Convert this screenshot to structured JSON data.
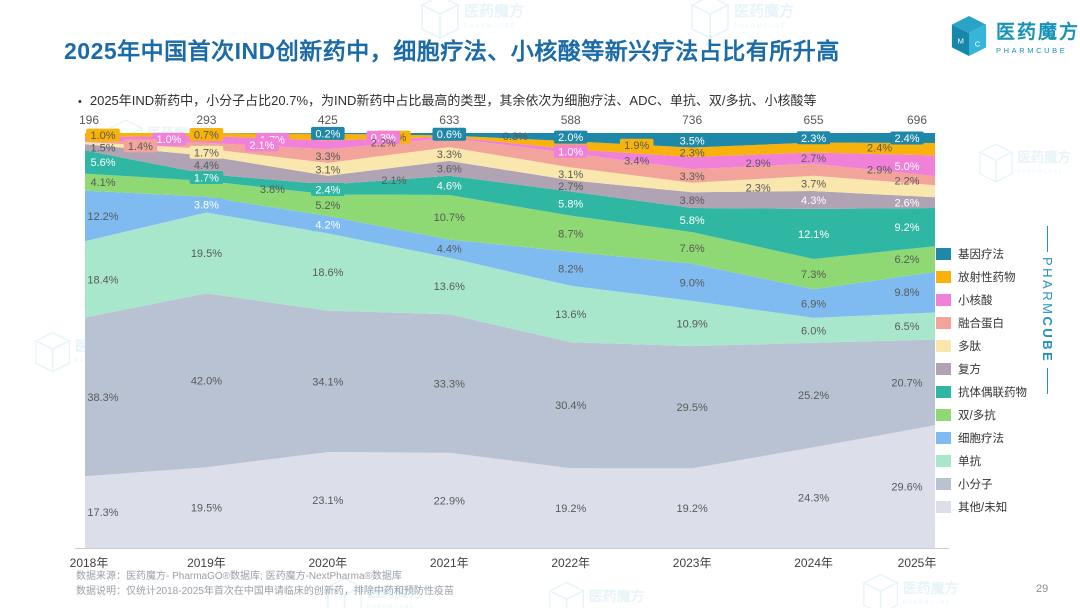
{
  "header": {
    "title": "2025年中国首次IND创新药中，细胞疗法、小核酸等新兴疗法占比有所升高",
    "bullet_marker": "•",
    "bullet": "2025年IND新药中，小分子占比20.7%，为IND新药中占比最高的类型，其余依次为细胞疗法、ADC、单抗、双/多抗、小核酸等"
  },
  "brand": {
    "logo_name_cn": "医药魔方",
    "logo_name_en": "PHARMCUBE",
    "side_brand_normal": "PHARM",
    "side_brand_bold": "CUBE"
  },
  "footer": {
    "source": "数据来源：医药魔方- PharmaGO®数据库; 医药魔方-NextPharma®数据库",
    "note": "数据说明：仅统计2018-2025年首次在中国申请临床的创新药，排除中药和预防性疫苗",
    "page_number": "29"
  },
  "colors": {
    "title_blue": "#1a6ba8",
    "brand_teal": "#1693b9",
    "label_dark": "#595959",
    "label_white": "#ffffff",
    "axis_line": "#c9ced6"
  },
  "chart_data": {
    "type": "area",
    "stacked": true,
    "percent_total": true,
    "grid": false,
    "legend_position": "right",
    "x": [
      "2018年",
      "2019年",
      "2020年",
      "2021年",
      "2022年",
      "2023年",
      "2024年",
      "2025年"
    ],
    "totals": [
      "196",
      "293",
      "425",
      "633",
      "588",
      "736",
      "655",
      "696"
    ],
    "ylim": [
      0,
      100
    ],
    "series": [
      {
        "id": "gene-therapy",
        "name": "基因疗法",
        "color": "#1f87a8",
        "values": [
          0,
          0,
          0.2,
          0.6,
          2.0,
          3.5,
          2.3,
          2.4
        ],
        "labels": [
          null,
          null,
          "0.2%",
          "0.6%",
          "2.0%",
          "3.5%",
          "2.3%",
          "2.4%"
        ],
        "styles": [
          null,
          null,
          "bw",
          "bw",
          "bw",
          "bw",
          "bw",
          "bw"
        ]
      },
      {
        "id": "radiopharmaceutical",
        "name": "放射性药物",
        "color": "#f7b30c",
        "values": [
          1.0,
          0.7,
          1.6,
          0.3,
          1.9,
          2.3,
          2.4,
          3.0
        ],
        "labels": [
          "1.0%",
          "0.7%",
          "1.6%",
          "0.3%",
          "1.9%",
          "2.3%",
          "2.4%",
          "3.0%"
        ],
        "styles": [
          "bd",
          "bd",
          "bd",
          "d",
          "bd",
          "d",
          "d",
          "d"
        ]
      },
      {
        "id": "small-nucleic-acid",
        "name": "小核酸",
        "color": "#f080d8",
        "values": [
          1.0,
          1.7,
          2.1,
          0.3,
          1.0,
          2.9,
          2.7,
          5.0
        ],
        "labels": [
          "1.0%",
          "1.7%",
          "2.1%",
          "0.3%",
          "1.0%",
          "2.9%",
          "2.7%",
          "5.0%"
        ],
        "styles": [
          "bw",
          "bw",
          "bw",
          "bw",
          "bw",
          "d",
          "d",
          "w"
        ]
      },
      {
        "id": "fusion-protein",
        "name": "融合蛋白",
        "color": "#f2a49a",
        "values": [
          0.2,
          1.4,
          3.3,
          2.2,
          3.4,
          3.3,
          2.9,
          2.2
        ],
        "labels": [
          null,
          "1.4%",
          "3.3%",
          "2.2%",
          "3.4%",
          "3.3%",
          "2.9%",
          "2.2%"
        ],
        "styles": [
          null,
          "bd",
          "d",
          "d",
          "d",
          "d",
          "d",
          "d"
        ]
      },
      {
        "id": "peptide",
        "name": "多肽",
        "color": "#fae7ae",
        "values": [
          0.5,
          1.7,
          3.1,
          3.3,
          3.1,
          2.3,
          3.7,
          2.9
        ],
        "labels": [
          "0.5%",
          "1.7%",
          "3.1%",
          "3.3%",
          "3.1%",
          "2.3%",
          "3.7%",
          "2.9%"
        ],
        "styles": [
          "bd",
          "bd",
          "d",
          "d",
          "d",
          "d",
          "d",
          "d"
        ]
      },
      {
        "id": "compound",
        "name": "复方",
        "color": "#b0a3b4",
        "values": [
          1.5,
          4.4,
          2.1,
          3.6,
          2.7,
          3.8,
          4.3,
          2.6
        ],
        "labels": [
          "1.5%",
          "4.4%",
          "2.1%",
          "3.6%",
          "2.7%",
          "3.8%",
          "4.3%",
          "2.6%"
        ],
        "styles": [
          "d",
          "d",
          "d",
          "d",
          "d",
          "d",
          "w",
          "w"
        ]
      },
      {
        "id": "adc",
        "name": "抗体偶联药物",
        "color": "#2fb7a3",
        "values": [
          5.6,
          1.7,
          2.4,
          4.6,
          5.8,
          5.8,
          12.1,
          9.2
        ],
        "labels": [
          "5.6%",
          "1.7%",
          "2.4%",
          "4.6%",
          "5.8%",
          "5.8%",
          "12.1%",
          "9.2%"
        ],
        "styles": [
          "w",
          "bw",
          "bw",
          "w",
          "w",
          "w",
          "w",
          "w"
        ]
      },
      {
        "id": "bi-multi-antibody",
        "name": "双/多抗",
        "color": "#8ed973",
        "values": [
          4.1,
          3.8,
          5.2,
          10.7,
          8.7,
          7.6,
          7.3,
          6.2
        ],
        "labels": [
          "4.1%",
          "3.8%",
          "5.2%",
          "10.7%",
          "8.7%",
          "7.6%",
          "7.3%",
          "6.2%"
        ],
        "styles": [
          "d",
          "d",
          "d",
          "d",
          "d",
          "d",
          "d",
          "d"
        ]
      },
      {
        "id": "cell-therapy",
        "name": "细胞疗法",
        "color": "#7fbbf0",
        "values": [
          12.2,
          3.8,
          4.2,
          4.4,
          8.2,
          9.0,
          6.9,
          9.8
        ],
        "labels": [
          "12.2%",
          "3.8%",
          "4.2%",
          "4.4%",
          "8.2%",
          "9.0%",
          "6.9%",
          "9.8%"
        ],
        "styles": [
          "d",
          "bw",
          "bw",
          "d",
          "d",
          "d",
          "d",
          "d"
        ]
      },
      {
        "id": "mab",
        "name": "单抗",
        "color": "#a9e7cc",
        "values": [
          18.4,
          19.5,
          18.6,
          13.6,
          13.6,
          10.9,
          6.0,
          6.5
        ],
        "labels": [
          "18.4%",
          "19.5%",
          "18.6%",
          "13.6%",
          "13.6%",
          "10.9%",
          "6.0%",
          "6.5%"
        ],
        "styles": [
          "d",
          "d",
          "d",
          "d",
          "d",
          "d",
          "d",
          "d"
        ]
      },
      {
        "id": "small-molecule",
        "name": "小分子",
        "color": "#b9c2d3",
        "values": [
          38.3,
          42.0,
          34.1,
          33.3,
          30.4,
          29.5,
          25.2,
          20.7
        ],
        "labels": [
          "38.3%",
          "42.0%",
          "34.1%",
          "33.3%",
          "30.4%",
          "29.5%",
          "25.2%",
          "20.7%"
        ],
        "styles": [
          "d",
          "d",
          "d",
          "d",
          "d",
          "d",
          "d",
          "d"
        ]
      },
      {
        "id": "other-unknown",
        "name": "其他/未知",
        "color": "#dcdfe9",
        "values": [
          17.3,
          19.5,
          23.1,
          22.9,
          19.2,
          19.2,
          24.3,
          29.6
        ],
        "labels": [
          "17.3%",
          "19.5%",
          "23.1%",
          "22.9%",
          "19.2%",
          "19.2%",
          "24.3%",
          "29.6%"
        ],
        "styles": [
          "d",
          "d",
          "d",
          "d",
          "d",
          "d",
          "d",
          "d"
        ]
      }
    ]
  }
}
